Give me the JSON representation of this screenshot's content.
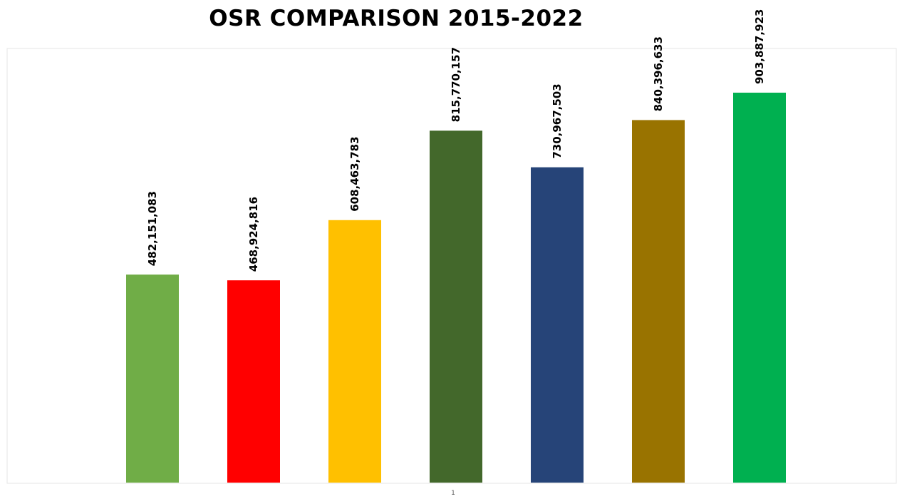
{
  "chart_data": {
    "type": "bar",
    "title": "OSR COMPARISON 2015-2022",
    "xlabel": "",
    "ylabel": "",
    "categories": [
      "1"
    ],
    "ylim": [
      0,
      1000000000
    ],
    "grid": false,
    "series": [
      {
        "value": 482151083,
        "label": "482,151,083",
        "color": "#70AD47"
      },
      {
        "value": 468924816,
        "label": "468,924,816",
        "color": "#FF0000"
      },
      {
        "value": 608463783,
        "label": "608,463,783",
        "color": "#FFC000"
      },
      {
        "value": 815770157,
        "label": "815,770,157",
        "color": "#43682B"
      },
      {
        "value": 730967503,
        "label": "730,967,503",
        "color": "#264478"
      },
      {
        "value": 840396633,
        "label": "840,396,633",
        "color": "#997300"
      },
      {
        "value": 903887923,
        "label": "903,887,923",
        "color": "#00B050"
      }
    ]
  }
}
